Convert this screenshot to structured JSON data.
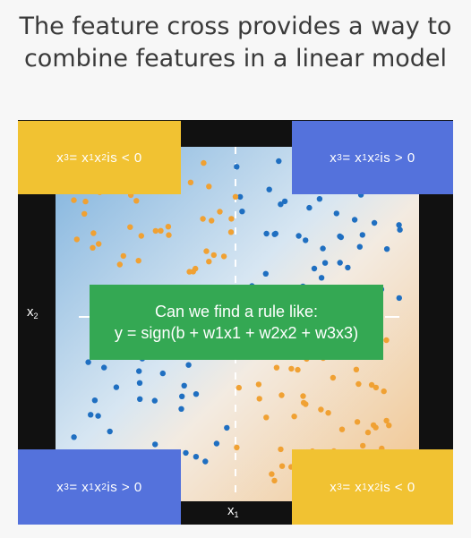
{
  "title": {
    "line1": "The feature cross provides a way to",
    "line2": "combine features in a linear model"
  },
  "quadrants": {
    "top_left": {
      "x3": "x",
      "x3_sub": "3",
      "eq": " = x",
      "a_sub": "1",
      "b": "x",
      "b_sub": "2",
      "rel": " is < 0"
    },
    "top_right": {
      "x3": "x",
      "x3_sub": "3",
      "eq": " = x",
      "a_sub": "1",
      "b": "x",
      "b_sub": "2",
      "rel": " is > 0"
    },
    "bottom_left": {
      "x3": "x",
      "x3_sub": "3",
      "eq": " = x",
      "a_sub": "1",
      "b": "x",
      "b_sub": "2",
      "rel": " is > 0"
    },
    "bottom_right": {
      "x3": "x",
      "x3_sub": "3",
      "eq": " = x",
      "a_sub": "1",
      "b": "x",
      "b_sub": "2",
      "rel": " is < 0"
    }
  },
  "axes": {
    "x1": "x",
    "x1_sub": "1",
    "x2": "x",
    "x2_sub": "2"
  },
  "callout": {
    "line1": "Can we find a rule like:",
    "line2": "y = sign(b + w1x1 + w2x2 + w3x3)"
  },
  "colors": {
    "orange_dot": "#f0a133",
    "blue_dot": "#1f6fc1",
    "yellow_box": "#f1c232",
    "blue_box": "#5472dc",
    "green_box": "#34a853"
  }
}
